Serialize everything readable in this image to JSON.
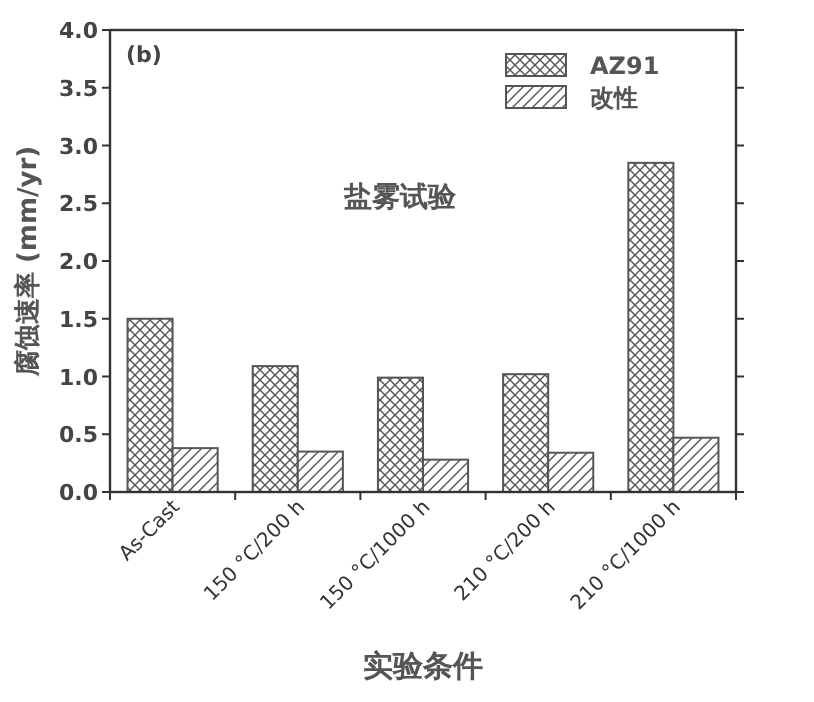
{
  "chart_data": {
    "type": "bar",
    "ylabel": "腐蚀速率 (mm/yr)",
    "xlabel": "实验条件",
    "categories": [
      "As-Cast",
      "150 °C/200 h",
      "150 °C/1000 h",
      "210 °C/200 h",
      "210 °C/1000 h"
    ],
    "series": [
      {
        "name": "AZ91",
        "color": "#555555",
        "values": [
          1.5,
          1.09,
          0.99,
          1.02,
          2.85
        ]
      },
      {
        "name": "改性",
        "color": "#555555",
        "values": [
          0.38,
          0.35,
          0.28,
          0.34,
          0.47
        ]
      }
    ],
    "ylim": [
      0,
      4
    ],
    "yticks": [
      {
        "value": 0,
        "label": "0.0"
      },
      0.5,
      {
        "value": 1,
        "label": "1.0"
      },
      1.5,
      {
        "value": 2,
        "label": "2.0"
      },
      2.5,
      {
        "value": 3,
        "label": "3.0"
      },
      3.5,
      {
        "value": 4,
        "label": "4.0"
      }
    ],
    "legend": "top right",
    "grid": false,
    "annotations": [
      "(b)",
      "盐雾试验"
    ]
  }
}
